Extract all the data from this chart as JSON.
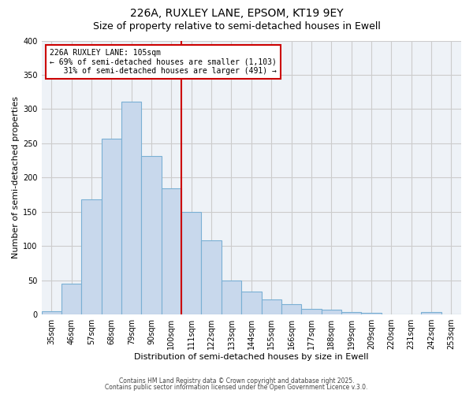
{
  "title1": "226A, RUXLEY LANE, EPSOM, KT19 9EY",
  "title2": "Size of property relative to semi-detached houses in Ewell",
  "xlabel": "Distribution of semi-detached houses by size in Ewell",
  "ylabel": "Number of semi-detached properties",
  "categories": [
    "35sqm",
    "46sqm",
    "57sqm",
    "68sqm",
    "79sqm",
    "90sqm",
    "100sqm",
    "111sqm",
    "122sqm",
    "133sqm",
    "144sqm",
    "155sqm",
    "166sqm",
    "177sqm",
    "188sqm",
    "199sqm",
    "209sqm",
    "220sqm",
    "231sqm",
    "242sqm",
    "253sqm"
  ],
  "values": [
    5,
    45,
    168,
    257,
    311,
    231,
    184,
    150,
    108,
    50,
    33,
    22,
    15,
    8,
    7,
    4,
    2,
    0,
    0,
    3,
    0
  ],
  "bar_color": "#c8d8ec",
  "bar_edge_color": "#7ab0d4",
  "vline_color": "#cc0000",
  "annotation_line1": "226A RUXLEY LANE: 105sqm",
  "annotation_line2": "← 69% of semi-detached houses are smaller (1,103)",
  "annotation_line3": "   31% of semi-detached houses are larger (491) →",
  "annotation_box_edge_color": "#cc0000",
  "ylim": [
    0,
    400
  ],
  "yticks": [
    0,
    50,
    100,
    150,
    200,
    250,
    300,
    350,
    400
  ],
  "grid_color": "#cccccc",
  "background_color": "#eef2f7",
  "footer1": "Contains HM Land Registry data © Crown copyright and database right 2025.",
  "footer2": "Contains public sector information licensed under the Open Government Licence v.3.0.",
  "title1_fontsize": 10,
  "title2_fontsize": 9,
  "axis_label_fontsize": 8,
  "tick_fontsize": 7,
  "annotation_fontsize": 7,
  "footer_fontsize": 5.5
}
